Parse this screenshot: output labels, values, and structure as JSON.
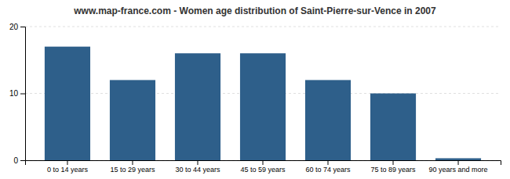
{
  "chart_data": {
    "type": "bar",
    "title": "www.map-france.com - Women age distribution of Saint-Pierre-sur-Vence in 2007",
    "categories": [
      "0 to 14 years",
      "15 to 29 years",
      "30 to 44 years",
      "45 to 59 years",
      "60 to 74 years",
      "75 to 89 years",
      "90 years and more"
    ],
    "values": [
      17,
      12,
      16,
      16,
      12,
      10,
      0.3
    ],
    "color": "#2e5f8a",
    "ylim": [
      0,
      20
    ],
    "yticks": [
      0,
      10,
      20
    ],
    "grid": true
  }
}
